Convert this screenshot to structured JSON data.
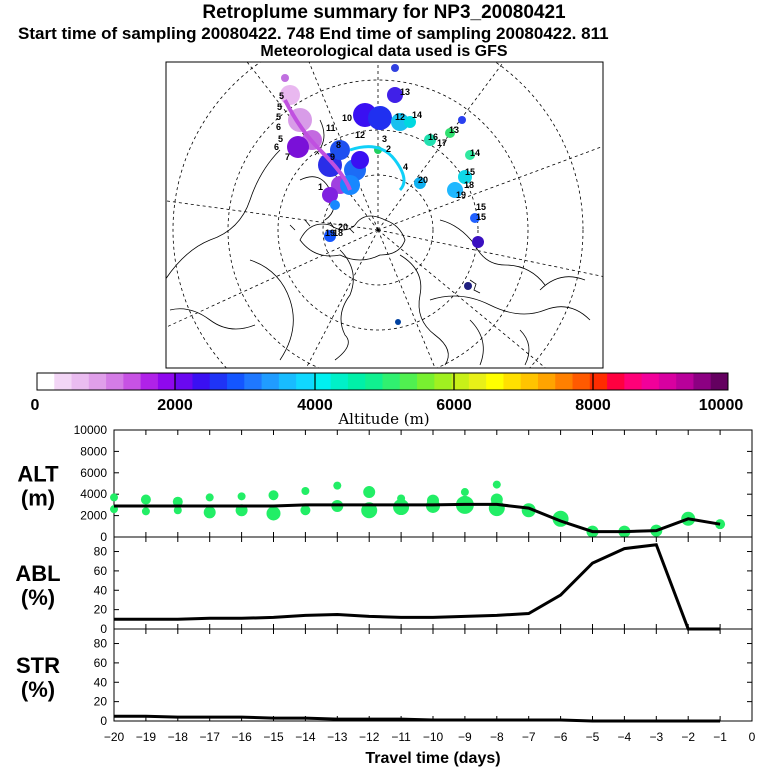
{
  "header": {
    "title": "Retroplume summary for NP3_20080421",
    "sampling": "Start time of sampling 20080422.   748     End time of sampling 20080422.   811",
    "met": "Meteorological data used is GFS"
  },
  "colorbar": {
    "ticks": [
      "0",
      "2000",
      "4000",
      "6000",
      "8000",
      "10000"
    ],
    "label": "Altitude (m)",
    "colors": [
      "#ffffff",
      "#f3d6f6",
      "#eabcf0",
      "#e09fea",
      "#d47ce6",
      "#c752e4",
      "#b022e8",
      "#8f08ee",
      "#6a08f0",
      "#3a10f2",
      "#1f34f6",
      "#1456ff",
      "#1f78ff",
      "#209cff",
      "#18bcff",
      "#10d8ff",
      "#00f0f0",
      "#00f0c8",
      "#00f0a8",
      "#10f090",
      "#30f070",
      "#50f050",
      "#78f030",
      "#a0f020",
      "#c8f018",
      "#e8f018",
      "#ffff00",
      "#ffe000",
      "#ffc400",
      "#ffa400",
      "#ff8000",
      "#ff5a00",
      "#ff2c00",
      "#ff0040",
      "#ff0078",
      "#f2009a",
      "#d800a0",
      "#b8009a",
      "#8c0082",
      "#640060"
    ]
  },
  "map": {
    "labels": [
      {
        "t": "5",
        "c": "#000"
      },
      {
        "t": "5",
        "c": "#000"
      },
      {
        "t": "5",
        "c": "#000"
      },
      {
        "t": "6",
        "c": "#000"
      },
      {
        "t": "5",
        "c": "#000"
      },
      {
        "t": "6",
        "c": "#000"
      },
      {
        "t": "7",
        "c": "#000"
      },
      {
        "t": "11",
        "c": "#000"
      },
      {
        "t": "10",
        "c": "#000"
      },
      {
        "t": "8",
        "c": "#000"
      },
      {
        "t": "9",
        "c": "#000"
      },
      {
        "t": "12",
        "c": "#000"
      },
      {
        "t": "13",
        "c": "#000"
      },
      {
        "t": "12",
        "c": "#000"
      },
      {
        "t": "14",
        "c": "#000"
      },
      {
        "t": "16",
        "c": "#000"
      },
      {
        "t": "17",
        "c": "#000"
      },
      {
        "t": "13",
        "c": "#000"
      },
      {
        "t": "14",
        "c": "#000"
      },
      {
        "t": "15",
        "c": "#000"
      },
      {
        "t": "18",
        "c": "#000"
      },
      {
        "t": "19",
        "c": "#000"
      },
      {
        "t": "20",
        "c": "#000"
      },
      {
        "t": "15",
        "c": "#000"
      },
      {
        "t": "15",
        "c": "#000"
      },
      {
        "t": "2",
        "c": "#000"
      },
      {
        "t": "3",
        "c": "#000"
      },
      {
        "t": "1",
        "c": "#000"
      },
      {
        "t": "19",
        "c": "#000"
      },
      {
        "t": "18",
        "c": "#000"
      },
      {
        "t": "20",
        "c": "#000"
      },
      {
        "t": "4",
        "c": "#000"
      }
    ]
  },
  "chart_data": [
    {
      "type": "scatter+line",
      "panel_label": [
        "ALT",
        "(m)"
      ],
      "ylim": [
        0,
        10000
      ],
      "yticks": [
        "0",
        "2000",
        "4000",
        "6000",
        "8000",
        "10000"
      ],
      "line": {
        "x": [
          -20,
          -19,
          -18,
          -17,
          -16,
          -15,
          -14,
          -13,
          -12,
          -11,
          -10,
          -9,
          -8,
          -7,
          -6,
          -5,
          -4,
          -3,
          -2,
          -1
        ],
        "y": [
          2900,
          2900,
          2900,
          2900,
          2900,
          2900,
          3000,
          3000,
          3000,
          3000,
          3000,
          3050,
          3050,
          2700,
          1500,
          500,
          500,
          600,
          1700,
          1200
        ]
      },
      "points": {
        "color": "#22ee66",
        "x": [
          -20,
          -20,
          -19,
          -19,
          -18,
          -18,
          -17,
          -17,
          -16,
          -16,
          -15,
          -15,
          -14,
          -14,
          -13,
          -13,
          -12,
          -12,
          -11,
          -11,
          -10,
          -10,
          -9,
          -9,
          -8,
          -8,
          -8,
          -7,
          -6,
          -5,
          -4,
          -3,
          -2,
          -1
        ],
        "y": [
          3700,
          2600,
          3500,
          2400,
          3300,
          2500,
          3700,
          2300,
          3800,
          2500,
          3900,
          2200,
          4300,
          2500,
          4800,
          2900,
          4200,
          2500,
          3600,
          2800,
          3400,
          2900,
          4200,
          3000,
          3500,
          2700,
          4900,
          2500,
          1700,
          500,
          500,
          600,
          1700,
          1200
        ],
        "size": [
          4,
          4,
          5,
          4,
          5,
          4,
          4,
          6,
          4,
          6,
          5,
          7,
          4,
          5,
          4,
          6,
          6,
          8,
          4,
          8,
          6,
          7,
          4,
          9,
          6,
          8,
          4,
          7,
          8,
          6,
          6,
          6,
          7,
          5
        ]
      }
    },
    {
      "type": "line",
      "panel_label": [
        "ABL",
        "(%)"
      ],
      "ylim": [
        0,
        95
      ],
      "yticks": [
        "0",
        "20",
        "40",
        "60",
        "80"
      ],
      "x": [
        -20,
        -19,
        -18,
        -17,
        -16,
        -15,
        -14,
        -13,
        -12,
        -11,
        -10,
        -9,
        -8,
        -7,
        -6,
        -5,
        -4,
        -3,
        -2,
        -1
      ],
      "y": [
        10,
        10,
        10,
        11,
        11,
        12,
        14,
        15,
        13,
        12,
        12,
        13,
        14,
        16,
        35,
        68,
        83,
        87,
        0,
        0
      ]
    },
    {
      "type": "line",
      "panel_label": [
        "STR",
        "(%)"
      ],
      "ylim": [
        0,
        95
      ],
      "yticks": [
        "0",
        "20",
        "40",
        "60",
        "80"
      ],
      "x": [
        -20,
        -19,
        -18,
        -17,
        -16,
        -15,
        -14,
        -13,
        -12,
        -11,
        -10,
        -9,
        -8,
        -7,
        -6,
        -5,
        -4,
        -3,
        -2,
        -1
      ],
      "y": [
        5,
        5,
        4,
        4,
        4,
        3,
        3,
        2,
        2,
        2,
        1,
        1,
        1,
        1,
        1,
        0,
        0,
        0,
        0,
        0
      ],
      "xlim": [
        -20,
        0
      ],
      "xticks": [
        "−20",
        "−19",
        "−18",
        "−17",
        "−16",
        "−15",
        "−14",
        "−13",
        "−12",
        "−11",
        "−10",
        "−9",
        "−8",
        "−7",
        "−6",
        "−5",
        "−4",
        "−3",
        "−2",
        "−1",
        "0"
      ],
      "xlabel": "Travel time (days)"
    }
  ]
}
